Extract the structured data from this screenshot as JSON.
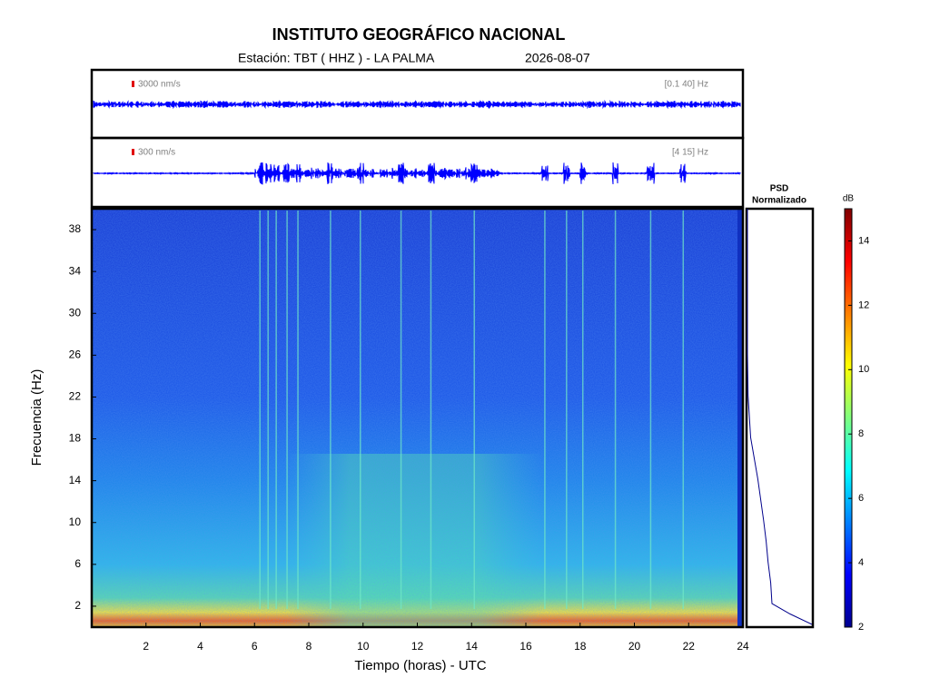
{
  "title": "INSTITUTO GEOGRÁFICO NACIONAL",
  "station": "Estación:  TBT ( HHZ ) - LA PALMA",
  "date": "2026-08-07",
  "chart_data": [
    {
      "type": "waveform",
      "scale_label": "3000 nm/s",
      "band_label": "[0.1 40] Hz",
      "color": "#0000ff"
    },
    {
      "type": "waveform",
      "scale_label": "300 nm/s",
      "band_label": "[4 15] Hz",
      "color": "#0000ff"
    },
    {
      "type": "spectrogram",
      "xlabel": "Tiempo (horas) - UTC",
      "ylabel": "Frecuencia  (Hz)",
      "xlim": [
        0,
        24
      ],
      "xticks": [
        2,
        4,
        6,
        8,
        10,
        12,
        14,
        16,
        18,
        20,
        22,
        24
      ],
      "ylim": [
        0,
        40
      ],
      "yticks": [
        2,
        6,
        10,
        14,
        18,
        22,
        26,
        30,
        34,
        38
      ],
      "events": [
        6.2,
        6.5,
        6.8,
        7.2,
        7.6,
        8.8,
        9.9,
        11.4,
        12.5,
        14.1,
        16.7,
        17.5,
        18.1,
        19.3,
        20.6,
        21.8
      ]
    },
    {
      "type": "line",
      "title": "PSD Normalizado",
      "color": "#00008b",
      "x": [
        0,
        1,
        2,
        4,
        6,
        8,
        10,
        14,
        18,
        22,
        26,
        30,
        34,
        38,
        40
      ],
      "values": [
        1,
        0.66,
        0.38,
        0.36,
        0.32,
        0.29,
        0.25,
        0.16,
        0.05,
        0.01,
        0,
        0,
        0,
        0,
        0
      ],
      "xlim": [
        0,
        40
      ],
      "ylim": [
        0,
        1
      ]
    },
    {
      "type": "colorbar",
      "label": "dB",
      "ylim": [
        2,
        15
      ],
      "yticks": [
        2,
        4,
        6,
        8,
        10,
        12,
        14
      ]
    }
  ]
}
